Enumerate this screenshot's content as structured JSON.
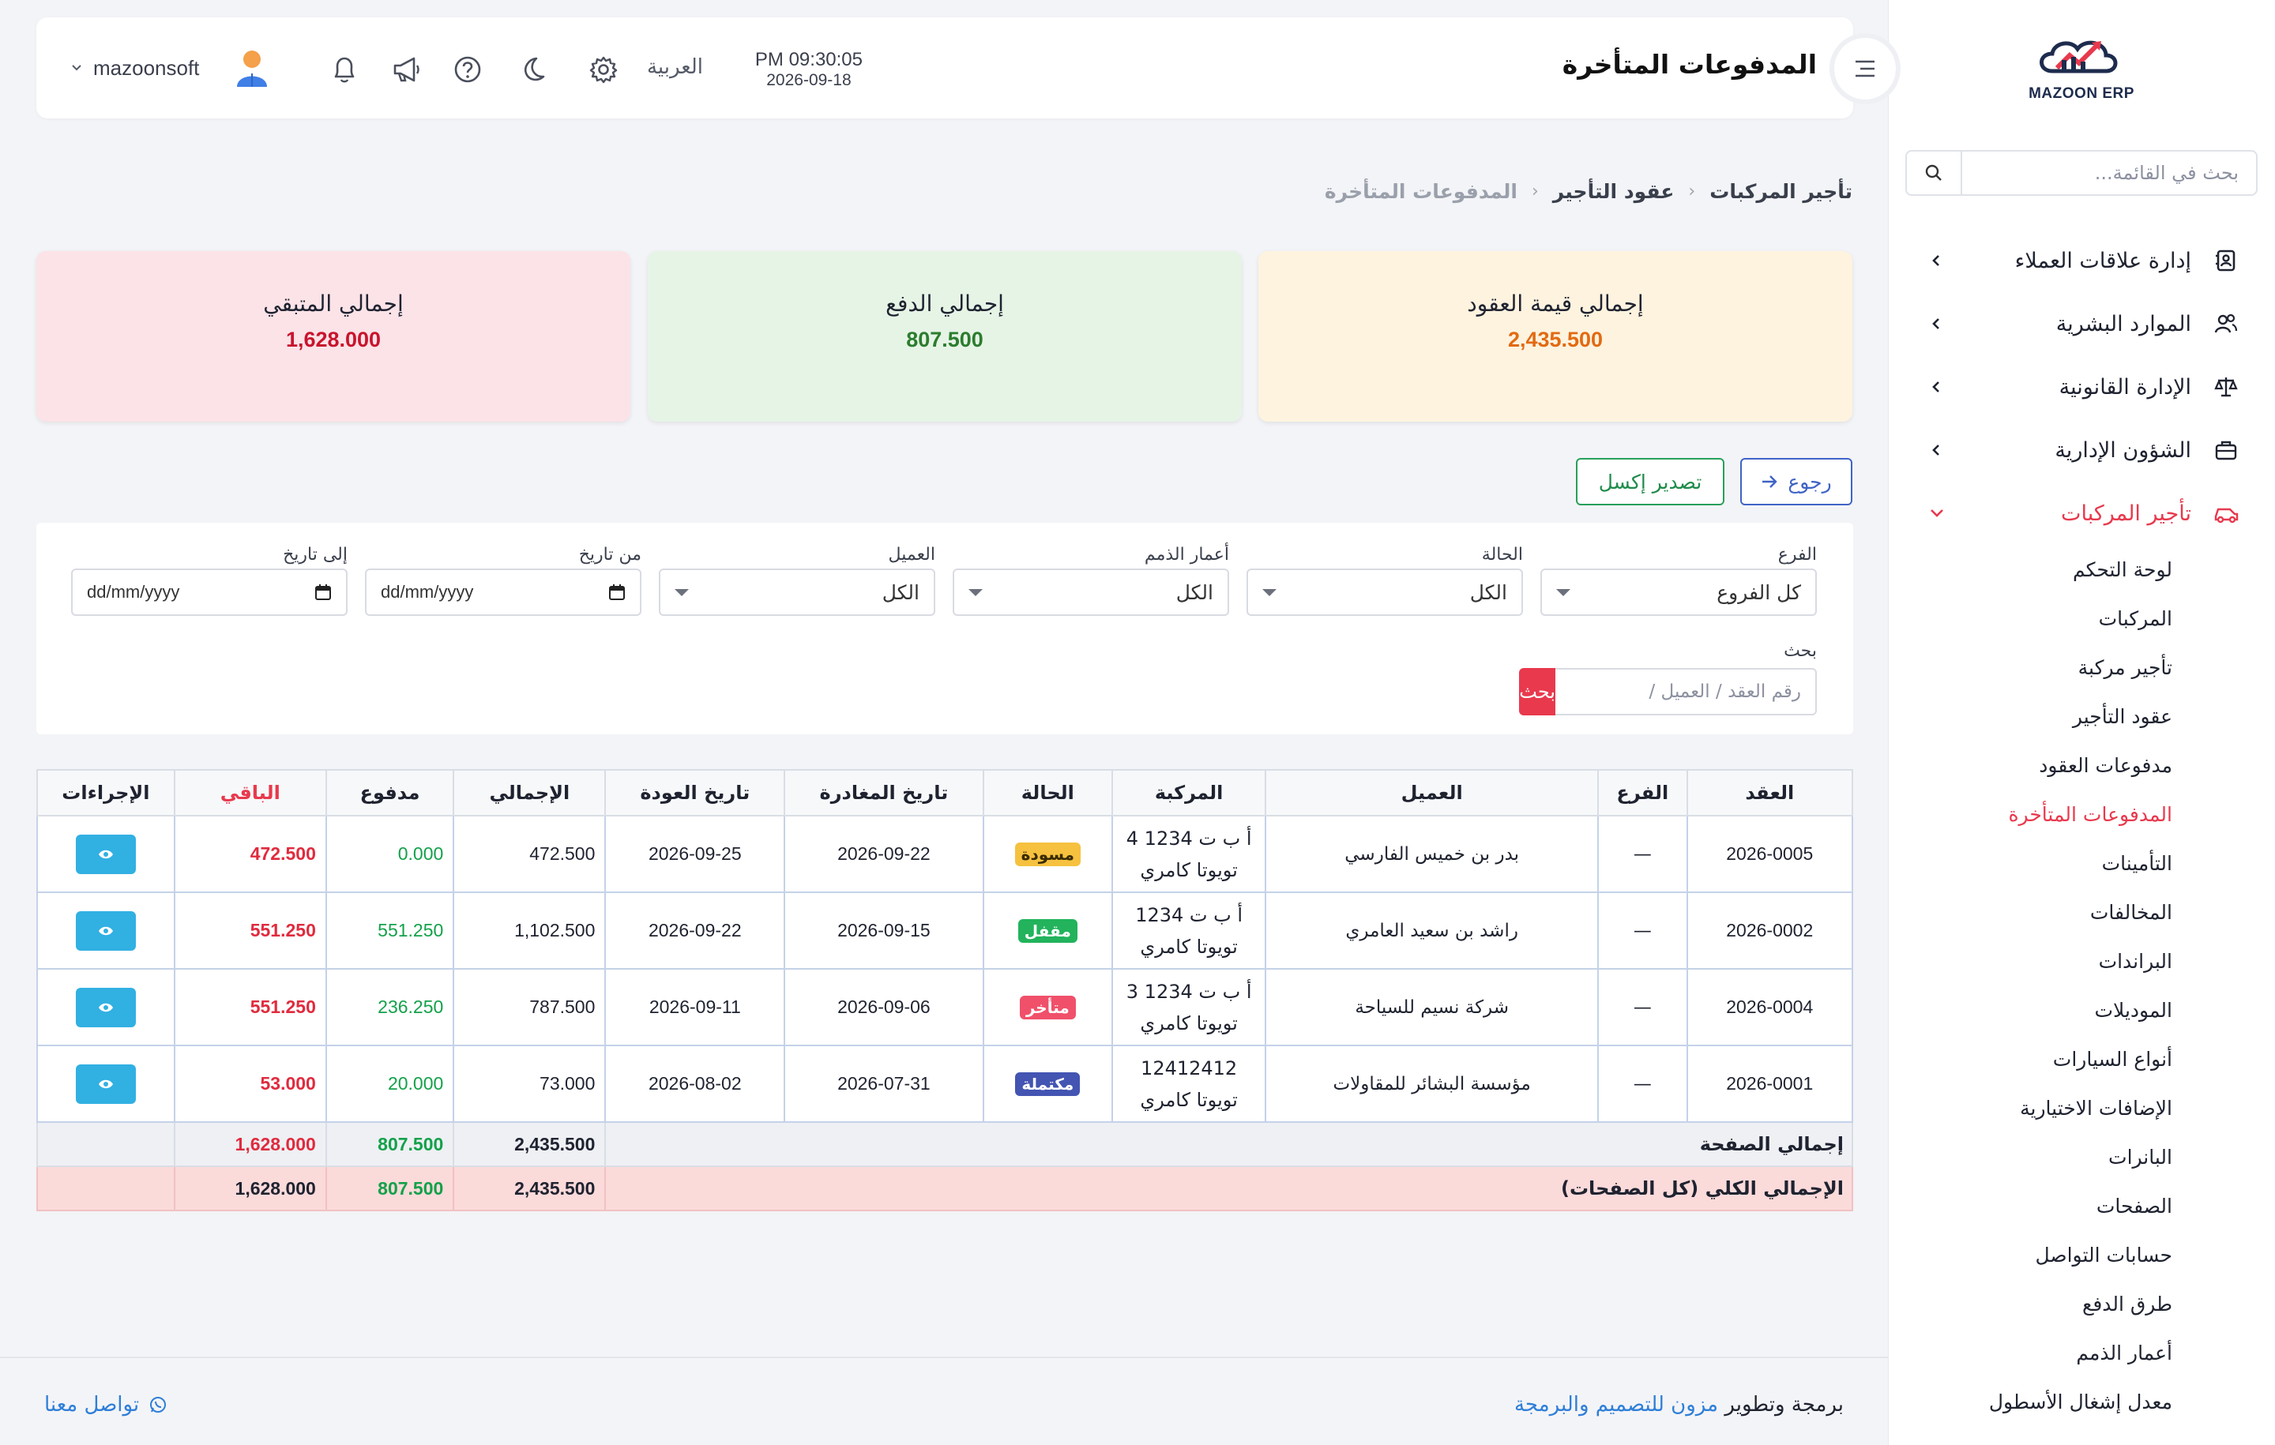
{
  "app": {
    "logo_text": "MAZOON ERP",
    "accent": "#e8394d",
    "primary": "#3f63c6"
  },
  "sidebar": {
    "search_placeholder": "بحث في القائمة...",
    "items": [
      {
        "label": "إدارة علاقات العملاء",
        "icon": "address-book-icon"
      },
      {
        "label": "الموارد البشرية",
        "icon": "users-icon"
      },
      {
        "label": "الإدارة القانونية",
        "icon": "scale-icon"
      },
      {
        "label": "الشؤون الإدارية",
        "icon": "briefcase-icon"
      },
      {
        "label": "تأجير المركبات",
        "icon": "car-icon"
      }
    ],
    "sub_items": [
      "لوحة التحكم",
      "المركبات",
      "تأجير مركبة",
      "عقود التأجير",
      "مدفوعات العقود",
      "المدفوعات المتأخرة",
      "التأمينات",
      "المخالفات",
      "البراندات",
      "الموديلات",
      "أنواع السيارات",
      "الإضافات الاختيارية",
      "البانرات",
      "الصفحات",
      "حسابات التواصل",
      "طرق الدفع",
      "أعمار الذمم",
      "معدل إشغال الأسطول"
    ]
  },
  "header": {
    "title": "المدفوعات المتأخرة",
    "time": "PM 09:30:05",
    "date": "2026-09-18",
    "language": "العربية",
    "username": "mazoonsoft"
  },
  "breadcrumb": {
    "root": "تأجير المركبات",
    "parent": "عقود التأجير",
    "current": "المدفوعات المتأخرة"
  },
  "stats": {
    "contracts_total_label": "إجمالي قيمة العقود",
    "contracts_total_value": "2,435.500",
    "paid_label": "إجمالي الدفع",
    "paid_value": "807.500",
    "remaining_label": "إجمالي المتبقي",
    "remaining_value": "1,628.000"
  },
  "actions": {
    "back_label": "رجوع",
    "export_label": "تصدير إكسل"
  },
  "filters": {
    "branch_label": "الفرع",
    "branch_value": "كل الفروع",
    "status_label": "الحالة",
    "status_value": "الكل",
    "aging_label": "أعمار الذمم",
    "aging_value": "الكل",
    "customer_label": "العميل",
    "customer_value": "الكل",
    "from_label": "من تاريخ",
    "from_value": "dd/mm/yyyy",
    "to_label": "إلى تاريخ",
    "to_value": "dd/mm/yyyy",
    "search_label": "بحث",
    "search_placeholder": "رقم العقد / العميل /",
    "search_button": "بحث"
  },
  "table": {
    "headers": {
      "contract": "العقد",
      "branch": "الفرع",
      "customer": "العميل",
      "vehicle": "المركبة",
      "status": "الحالة",
      "departure": "تاريخ المغادرة",
      "return": "تاريخ العودة",
      "total": "الإجمالي",
      "paid": "مدفوع",
      "remaining": "الباقي",
      "actions": "الإجراءات"
    },
    "rows": [
      {
        "contract": "2026-0005",
        "branch": "—",
        "customer": "بدر بن خميس الفارسي",
        "plate": "أ ب ت 1234 4",
        "model": "تويوتا كامري",
        "status": "مسودة",
        "status_kind": "draft",
        "departure": "2026-09-22",
        "return": "2026-09-25",
        "total": "472.500",
        "paid": "0.000",
        "remaining": "472.500"
      },
      {
        "contract": "2026-0002",
        "branch": "—",
        "customer": "راشد بن سعيد العامري",
        "plate": "أ ب ت 1234",
        "model": "تويوتا كامري",
        "status": "مقفل",
        "status_kind": "closed",
        "departure": "2026-09-15",
        "return": "2026-09-22",
        "total": "1,102.500",
        "paid": "551.250",
        "remaining": "551.250"
      },
      {
        "contract": "2026-0004",
        "branch": "—",
        "customer": "شركة نسيم للسياحة",
        "plate": "أ ب ت 1234 3",
        "model": "تويوتا كامري",
        "status": "متأخر",
        "status_kind": "late",
        "departure": "2026-09-06",
        "return": "2026-09-11",
        "total": "787.500",
        "paid": "236.250",
        "remaining": "551.250"
      },
      {
        "contract": "2026-0001",
        "branch": "—",
        "customer": "مؤسسة البشائر للمقاولات",
        "plate": "12412412",
        "model": "تويوتا كامري",
        "status": "مكتملة",
        "status_kind": "done",
        "departure": "2026-07-31",
        "return": "2026-08-02",
        "total": "73.000",
        "paid": "20.000",
        "remaining": "53.000"
      }
    ],
    "page_total": {
      "label": "إجمالي الصفحة",
      "total": "2,435.500",
      "paid": "807.500",
      "remaining": "1,628.000"
    },
    "grand_total": {
      "label": "الإجمالي الكلي (كل الصفحات)",
      "total": "2,435.500",
      "paid": "807.500",
      "remaining": "1,628.000"
    }
  },
  "footer": {
    "credit_prefix": "برمجة وتطوير",
    "credit_brand": "مزون للتصميم والبرمجة",
    "contact": "تواصل معنا"
  }
}
